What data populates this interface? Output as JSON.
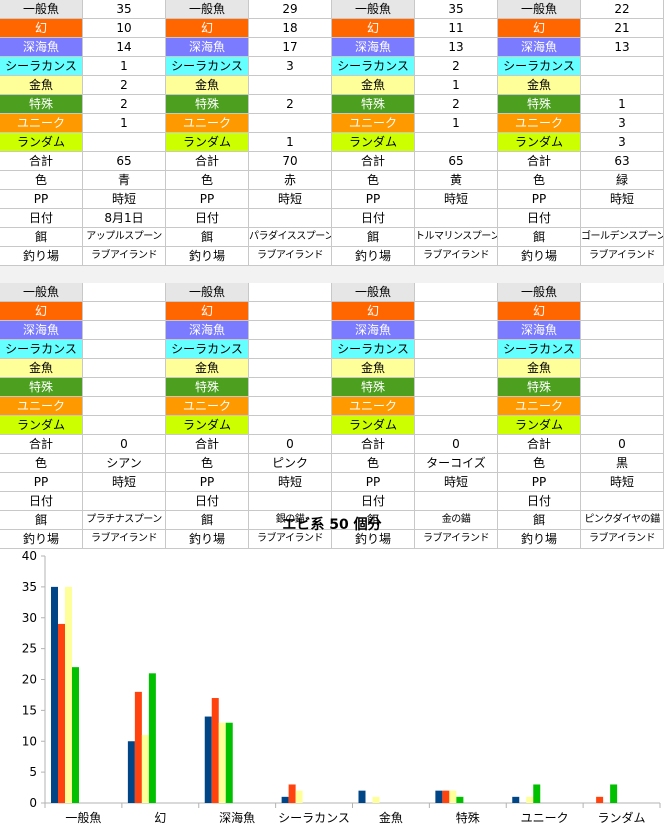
{
  "row_labels": [
    "一般魚",
    "幻",
    "深海魚",
    "シーラカンス",
    "金魚",
    "特殊",
    "ユニーク",
    "ランダム",
    "合計",
    "色",
    "PP",
    "日付",
    "餌",
    "釣り場"
  ],
  "row_colors": [
    "#e6e6e6",
    "#ff6600",
    "#7b7bff",
    "#66ffff",
    "#ffff99",
    "#4c9f1f",
    "#ff9900",
    "#ccff00",
    "#ffffff",
    "#ffffff",
    "#ffffff",
    "#ffffff",
    "#ffffff",
    "#ffffff"
  ],
  "top_blocks": [
    {
      "values": [
        "35",
        "10",
        "14",
        "1",
        "2",
        "2",
        "1",
        "",
        "65",
        "青",
        "時短",
        "8月1日",
        "アップルスプーン",
        "ラブアイランド"
      ]
    },
    {
      "values": [
        "29",
        "18",
        "17",
        "3",
        "",
        "2",
        "",
        "1",
        "70",
        "赤",
        "時短",
        "",
        "パラダイススプーン",
        "ラブアイランド"
      ]
    },
    {
      "values": [
        "35",
        "11",
        "13",
        "2",
        "1",
        "2",
        "1",
        "",
        "65",
        "黄",
        "時短",
        "",
        "トルマリンスプーン",
        "ラブアイランド"
      ]
    },
    {
      "values": [
        "22",
        "21",
        "13",
        "",
        "",
        "1",
        "3",
        "3",
        "63",
        "緑",
        "時短",
        "",
        "ゴールデンスプーン",
        "ラブアイランド"
      ]
    }
  ],
  "bottom_blocks": [
    {
      "values": [
        "",
        "",
        "",
        "",
        "",
        "",
        "",
        "",
        "0",
        "シアン",
        "時短",
        "",
        "プラチナスプーン",
        "ラブアイランド"
      ]
    },
    {
      "values": [
        "",
        "",
        "",
        "",
        "",
        "",
        "",
        "",
        "0",
        "ピンク",
        "時短",
        "",
        "銀の錨",
        "ラブアイランド"
      ]
    },
    {
      "values": [
        "",
        "",
        "",
        "",
        "",
        "",
        "",
        "",
        "0",
        "ターコイズ",
        "時短",
        "",
        "金の錨",
        "ラブアイランド"
      ]
    },
    {
      "values": [
        "",
        "",
        "",
        "",
        "",
        "",
        "",
        "",
        "0",
        "黒",
        "時短",
        "",
        "ピンクダイヤの錨",
        "ラブアイランド"
      ]
    }
  ],
  "chart_data": {
    "type": "bar",
    "title": "エビ系 50 個分",
    "categories": [
      "一般魚",
      "幻",
      "深海魚",
      "シーラカンス",
      "金魚",
      "特殊",
      "ユニーク",
      "ランダム"
    ],
    "series": [
      {
        "color": "#004586",
        "values": [
          35,
          10,
          14,
          1,
          2,
          2,
          1,
          0
        ]
      },
      {
        "color": "#ff420e",
        "values": [
          29,
          18,
          17,
          3,
          0,
          2,
          0,
          1
        ]
      },
      {
        "color": "#ffff99",
        "values": [
          35,
          11,
          13,
          2,
          1,
          2,
          1,
          0
        ]
      },
      {
        "color": "#00c000",
        "values": [
          22,
          21,
          13,
          0,
          0,
          1,
          3,
          3
        ]
      }
    ],
    "ylim": [
      0,
      40
    ],
    "yticks": [
      "0",
      "5",
      "10",
      "15",
      "20",
      "25",
      "30",
      "35",
      "40"
    ],
    "grid": false,
    "legend": "none"
  }
}
